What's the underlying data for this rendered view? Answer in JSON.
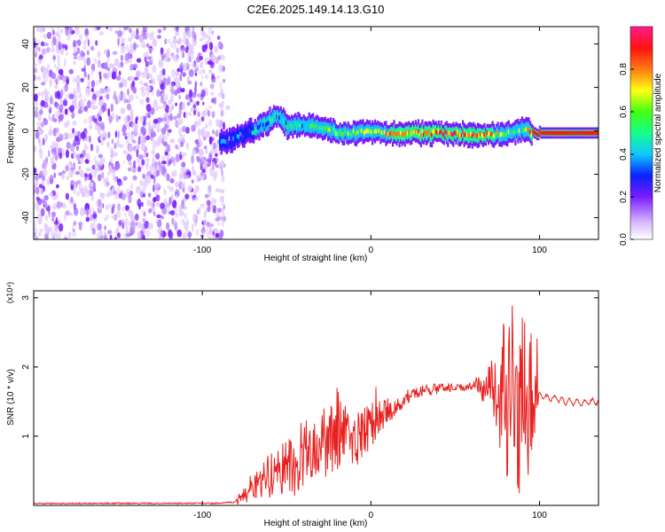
{
  "title": "C2E6.2025.149.14.13.G10",
  "chart_data": [
    {
      "type": "heatmap",
      "xlabel": "Height of straight line (km)",
      "ylabel": "Frequency (Hz)",
      "xlim": [
        -200,
        135
      ],
      "ylim": [
        -50,
        48
      ],
      "x_ticks": [
        -100,
        0,
        100
      ],
      "y_ticks": [
        -40,
        -20,
        0,
        20,
        40
      ],
      "colorbar": {
        "label": "Normalized spectral amplitude",
        "range": [
          0,
          1
        ],
        "ticks": [
          0.0,
          0.2,
          0.4,
          0.6,
          0.8
        ],
        "tick_labels": [
          "0.0",
          "0.2",
          "0.4",
          "0.6",
          "0.8"
        ]
      },
      "noise_region_x": [
        -200,
        -87
      ],
      "ridge": [
        {
          "x": -90,
          "y": -6,
          "amp": 0.3
        },
        {
          "x": -80,
          "y": -3,
          "amp": 0.35
        },
        {
          "x": -70,
          "y": 0,
          "amp": 0.4
        },
        {
          "x": -60,
          "y": 5,
          "amp": 0.45
        },
        {
          "x": -55,
          "y": 7,
          "amp": 0.4
        },
        {
          "x": -50,
          "y": 2,
          "amp": 0.55
        },
        {
          "x": -40,
          "y": 3,
          "amp": 0.5
        },
        {
          "x": -30,
          "y": 2,
          "amp": 0.55
        },
        {
          "x": -20,
          "y": -1,
          "amp": 0.6
        },
        {
          "x": -10,
          "y": -1,
          "amp": 0.65
        },
        {
          "x": 0,
          "y": 0,
          "amp": 0.7
        },
        {
          "x": 10,
          "y": -1,
          "amp": 0.8
        },
        {
          "x": 30,
          "y": -1,
          "amp": 0.85
        },
        {
          "x": 50,
          "y": -1,
          "amp": 0.9
        },
        {
          "x": 70,
          "y": -2,
          "amp": 0.85
        },
        {
          "x": 80,
          "y": -1,
          "amp": 0.6
        },
        {
          "x": 90,
          "y": 1,
          "amp": 0.55
        },
        {
          "x": 95,
          "y": -1,
          "amp": 0.9
        },
        {
          "x": 110,
          "y": -1,
          "amp": 0.95
        },
        {
          "x": 135,
          "y": -1,
          "amp": 0.95
        }
      ]
    },
    {
      "type": "line",
      "xlabel": "Height of straight line (km)",
      "ylabel": "SNR (10 * v/v)",
      "y_multiplier": "(x10⁴)",
      "xlim": [
        -200,
        135
      ],
      "ylim": [
        0,
        3.1
      ],
      "x_ticks": [
        -100,
        0,
        100
      ],
      "y_ticks": [
        1,
        2,
        3
      ],
      "color": "#e8201e",
      "x": [
        -200,
        -90,
        -80,
        -75,
        -70,
        -65,
        -60,
        -55,
        -50,
        -45,
        -40,
        -35,
        -30,
        -25,
        -20,
        -15,
        -10,
        -5,
        0,
        5,
        10,
        15,
        20,
        25,
        30,
        35,
        40,
        45,
        50,
        55,
        60,
        65,
        70,
        72,
        75,
        78,
        80,
        82,
        85,
        88,
        90,
        92,
        95,
        98,
        100,
        105,
        110,
        115,
        120,
        125,
        130,
        135
      ],
      "y": [
        0.03,
        0.03,
        0.05,
        0.15,
        0.25,
        0.35,
        0.45,
        0.55,
        0.5,
        0.6,
        0.75,
        0.8,
        0.85,
        0.9,
        1.0,
        1.05,
        1.0,
        1.05,
        1.15,
        1.3,
        1.4,
        1.45,
        1.55,
        1.6,
        1.65,
        1.68,
        1.7,
        1.7,
        1.7,
        1.7,
        1.72,
        1.7,
        1.72,
        1.7,
        1.65,
        1.5,
        1.6,
        1.55,
        1.6,
        1.5,
        1.55,
        1.6,
        1.55,
        1.5,
        1.6,
        1.55,
        1.55,
        1.5,
        1.5,
        1.48,
        1.5,
        1.5
      ],
      "osc_x": [
        -80,
        100
      ],
      "osc_amplitude": [
        {
          "x": -80,
          "a": 0.05
        },
        {
          "x": -60,
          "a": 0.35
        },
        {
          "x": -40,
          "a": 0.5
        },
        {
          "x": -20,
          "a": 0.55
        },
        {
          "x": 0,
          "a": 0.35
        },
        {
          "x": 20,
          "a": 0.1
        },
        {
          "x": 60,
          "a": 0.05
        },
        {
          "x": 72,
          "a": 0.4
        },
        {
          "x": 80,
          "a": 1.3
        },
        {
          "x": 85,
          "a": 1.5
        },
        {
          "x": 92,
          "a": 1.3
        },
        {
          "x": 98,
          "a": 0.8
        },
        {
          "x": 100,
          "a": 0.05
        }
      ]
    }
  ]
}
